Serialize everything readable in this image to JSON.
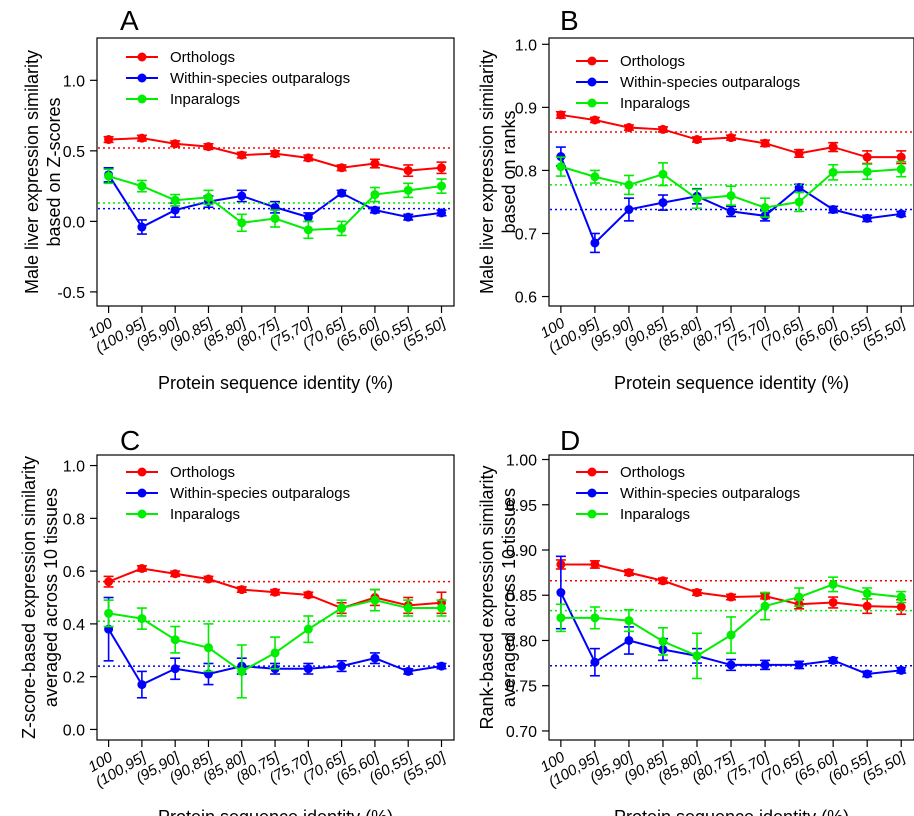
{
  "figure": {
    "xlabel": "Protein sequence identity (%)",
    "categories": [
      "100",
      "(100,95]",
      "(95,90]",
      "(90,85]",
      "(85,80]",
      "(80,75]",
      "(75,70]",
      "(70,65]",
      "(65,60]",
      "(60,55]",
      "(55,50]"
    ],
    "series_colors": {
      "Orthologs": "#ff0000",
      "Within-species outparalogs": "#0000ff",
      "Inparalogs": "#00ee00"
    }
  },
  "chart_data": [
    {
      "panel": "A",
      "type": "line",
      "ylabel_lines": [
        "Male liver expression similarity",
        "based on Z-scores"
      ],
      "xlabel": "Protein sequence identity (%)",
      "ylim": [
        -0.6,
        1.3
      ],
      "yticks": [
        "-0.5",
        "0.0",
        "0.5",
        "1.0"
      ],
      "yticks_values": [
        -0.5,
        0.0,
        0.5,
        1.0
      ],
      "legend": "top-left",
      "series": [
        {
          "name": "Orthologs",
          "values": [
            0.58,
            0.59,
            0.55,
            0.53,
            0.47,
            0.48,
            0.45,
            0.38,
            0.41,
            0.36,
            0.38
          ],
          "errors": [
            0.02,
            0.02,
            0.02,
            0.02,
            0.02,
            0.02,
            0.02,
            0.02,
            0.03,
            0.04,
            0.04
          ],
          "reference": 0.52
        },
        {
          "name": "Within-species outparalogs",
          "values": [
            0.33,
            -0.04,
            0.08,
            0.14,
            0.18,
            0.1,
            0.03,
            0.2,
            0.08,
            0.03,
            0.06
          ],
          "errors": [
            0.05,
            0.05,
            0.05,
            0.04,
            0.04,
            0.04,
            0.03,
            0.02,
            0.02,
            0.02,
            0.02
          ],
          "reference": 0.09
        },
        {
          "name": "Inparalogs",
          "values": [
            0.32,
            0.25,
            0.15,
            0.17,
            -0.01,
            0.02,
            -0.06,
            -0.05,
            0.19,
            0.22,
            0.25
          ],
          "errors": [
            0.05,
            0.04,
            0.04,
            0.05,
            0.06,
            0.06,
            0.06,
            0.05,
            0.05,
            0.05,
            0.05
          ],
          "reference": 0.13
        }
      ]
    },
    {
      "panel": "B",
      "type": "line",
      "ylabel_lines": [
        "Male liver expression similarity",
        "based on ranks"
      ],
      "xlabel": "Protein sequence identity (%)",
      "ylim": [
        0.585,
        1.01
      ],
      "yticks": [
        "0.6",
        "0.7",
        "0.8",
        "0.9",
        "1.0"
      ],
      "yticks_values": [
        0.6,
        0.7,
        0.8,
        0.9,
        1.0
      ],
      "legend": "top-left",
      "series": [
        {
          "name": "Orthologs",
          "values": [
            0.888,
            0.88,
            0.868,
            0.865,
            0.849,
            0.852,
            0.843,
            0.827,
            0.837,
            0.821,
            0.821
          ],
          "errors": [
            0.005,
            0.004,
            0.004,
            0.004,
            0.004,
            0.004,
            0.005,
            0.006,
            0.007,
            0.01,
            0.01
          ],
          "reference": 0.861
        },
        {
          "name": "Within-species outparalogs",
          "values": [
            0.822,
            0.685,
            0.738,
            0.749,
            0.759,
            0.735,
            0.728,
            0.773,
            0.738,
            0.724,
            0.731
          ],
          "errors": [
            0.015,
            0.015,
            0.018,
            0.012,
            0.012,
            0.008,
            0.008,
            0.005,
            0.005,
            0.005,
            0.004
          ],
          "reference": 0.738
        },
        {
          "name": "Inparalogs",
          "values": [
            0.806,
            0.79,
            0.777,
            0.794,
            0.755,
            0.76,
            0.741,
            0.75,
            0.797,
            0.798,
            0.802
          ],
          "errors": [
            0.015,
            0.01,
            0.015,
            0.018,
            0.015,
            0.015,
            0.015,
            0.015,
            0.012,
            0.012,
            0.012
          ],
          "reference": 0.777
        }
      ]
    },
    {
      "panel": "C",
      "type": "line",
      "ylabel_lines": [
        "Z-score-based expression similarity",
        "averaged across 10 tissues"
      ],
      "xlabel": "Protein sequence identity (%)",
      "ylim": [
        -0.04,
        1.04
      ],
      "yticks": [
        "0.0",
        "0.2",
        "0.4",
        "0.6",
        "0.8",
        "1.0"
      ],
      "yticks_values": [
        0.0,
        0.2,
        0.4,
        0.6,
        0.8,
        1.0
      ],
      "legend": "top-left",
      "series": [
        {
          "name": "Orthologs",
          "values": [
            0.56,
            0.61,
            0.59,
            0.57,
            0.53,
            0.52,
            0.51,
            0.46,
            0.5,
            0.47,
            0.48
          ],
          "errors": [
            0.02,
            0.01,
            0.01,
            0.01,
            0.01,
            0.01,
            0.01,
            0.02,
            0.03,
            0.03,
            0.04
          ],
          "reference": 0.56
        },
        {
          "name": "Within-species outparalogs",
          "values": [
            0.38,
            0.17,
            0.23,
            0.21,
            0.24,
            0.23,
            0.23,
            0.24,
            0.27,
            0.22,
            0.24
          ],
          "errors": [
            0.12,
            0.05,
            0.04,
            0.04,
            0.03,
            0.02,
            0.02,
            0.02,
            0.02,
            0.01,
            0.01
          ],
          "reference": 0.24
        },
        {
          "name": "Inparalogs",
          "values": [
            0.44,
            0.42,
            0.34,
            0.31,
            0.22,
            0.29,
            0.38,
            0.46,
            0.49,
            0.46,
            0.46
          ],
          "errors": [
            0.05,
            0.04,
            0.05,
            0.09,
            0.1,
            0.06,
            0.05,
            0.03,
            0.04,
            0.03,
            0.03
          ],
          "reference": 0.41
        }
      ]
    },
    {
      "panel": "D",
      "type": "line",
      "ylabel_lines": [
        "Rank-based expression similarity",
        "averaged across 10 tissues"
      ],
      "xlabel": "Protein sequence identity (%)",
      "ylim": [
        0.69,
        1.005
      ],
      "yticks": [
        "0.70",
        "0.75",
        "0.80",
        "0.85",
        "0.90",
        "0.95",
        "1.00"
      ],
      "yticks_values": [
        0.7,
        0.75,
        0.8,
        0.85,
        0.9,
        0.95,
        1.0
      ],
      "legend": "top-left",
      "series": [
        {
          "name": "Orthologs",
          "values": [
            0.884,
            0.884,
            0.875,
            0.866,
            0.853,
            0.848,
            0.849,
            0.84,
            0.842,
            0.838,
            0.837
          ],
          "errors": [
            0.005,
            0.004,
            0.003,
            0.003,
            0.003,
            0.003,
            0.003,
            0.005,
            0.006,
            0.008,
            0.008
          ],
          "reference": 0.866
        },
        {
          "name": "Within-species outparalogs",
          "values": [
            0.853,
            0.776,
            0.8,
            0.79,
            0.783,
            0.773,
            0.773,
            0.773,
            0.778,
            0.763,
            0.767
          ],
          "errors": [
            0.04,
            0.015,
            0.015,
            0.012,
            0.008,
            0.006,
            0.005,
            0.004,
            0.003,
            0.003,
            0.003
          ],
          "reference": 0.772
        },
        {
          "name": "Inparalogs",
          "values": [
            0.825,
            0.825,
            0.822,
            0.799,
            0.783,
            0.806,
            0.838,
            0.848,
            0.862,
            0.852,
            0.848
          ],
          "errors": [
            0.015,
            0.012,
            0.012,
            0.015,
            0.025,
            0.02,
            0.015,
            0.01,
            0.008,
            0.006,
            0.006
          ],
          "reference": 0.833
        }
      ]
    }
  ]
}
